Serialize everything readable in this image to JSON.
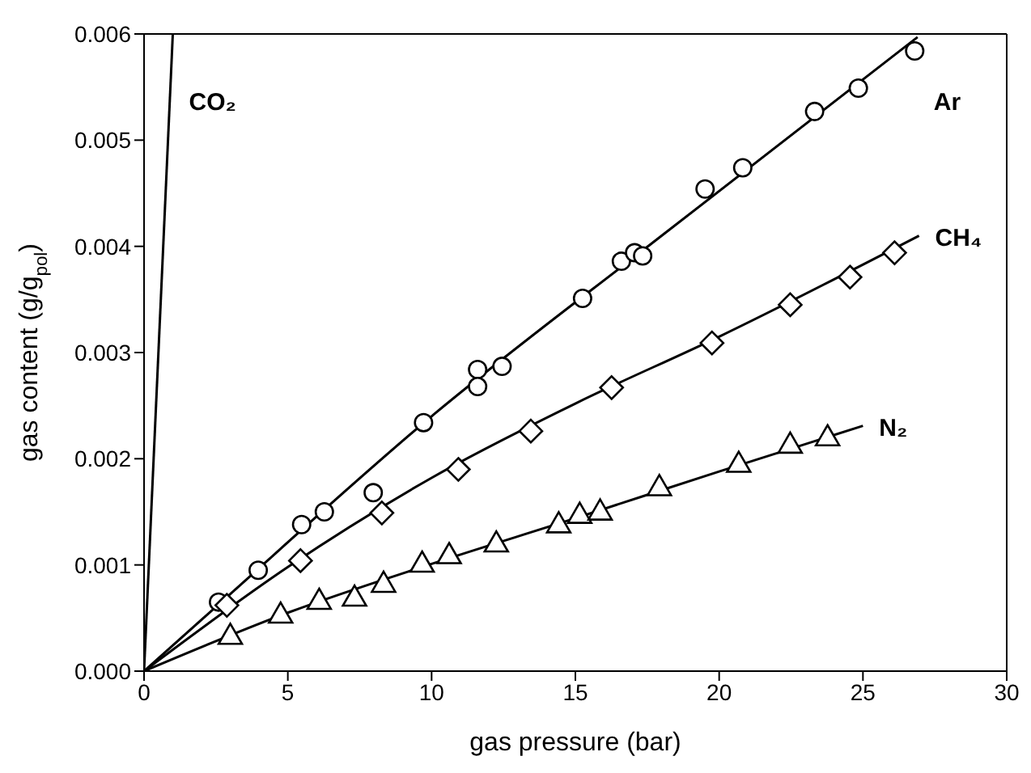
{
  "chart_data": {
    "type": "scatter",
    "xlabel": "gas pressure (bar)",
    "ylabel": "gas content (g/g$_{pol}$)",
    "xlim": [
      0,
      30
    ],
    "xticks": [
      0,
      5,
      10,
      15,
      20,
      25,
      30
    ],
    "ylim": [
      0,
      0.006
    ],
    "yticks": [
      {
        "value": 0,
        "label": "0.000"
      },
      {
        "value": 0.001,
        "label": "0.001"
      },
      {
        "value": 0.002,
        "label": "0.002"
      },
      {
        "value": 0.003,
        "label": "0.003"
      },
      {
        "value": 0.004,
        "label": "0.004"
      },
      {
        "value": 0.005,
        "label": "0.005"
      },
      {
        "value": 0.006,
        "label": "0.006"
      }
    ],
    "series": [
      {
        "marker": "circle",
        "color": "#000000",
        "x": [
          2.59,
          3.97,
          5.48,
          6.27,
          7.97,
          9.72,
          11.6,
          11.6,
          12.45,
          15.25,
          16.6,
          17.06,
          17.34,
          19.51,
          20.82,
          23.32,
          24.84,
          26.8
        ],
        "values": [
          0.00065,
          0.00095,
          0.00138,
          0.0015,
          0.00168,
          0.00234,
          0.00284,
          0.00268,
          0.00287,
          0.00351,
          0.00386,
          0.00394,
          0.00391,
          0.00454,
          0.00474,
          0.00527,
          0.00549,
          0.00584
        ]
      },
      {
        "marker": "diamond",
        "color": "#000000",
        "x": [
          2.88,
          5.44,
          8.27,
          10.93,
          13.45,
          16.26,
          19.75,
          22.47,
          24.55,
          26.1
        ],
        "values": [
          0.00062,
          0.00104,
          0.00149,
          0.0019,
          0.00226,
          0.00267,
          0.00309,
          0.00345,
          0.00371,
          0.00394
        ]
      },
      {
        "marker": "triangle",
        "color": "#000000",
        "x": [
          3.0,
          4.75,
          6.09,
          7.32,
          8.33,
          9.67,
          10.61,
          12.25,
          14.42,
          15.15,
          15.86,
          17.92,
          20.68,
          22.47,
          23.77
        ],
        "values": [
          0.00032,
          0.00052,
          0.00065,
          0.00068,
          0.00081,
          0.001,
          0.00108,
          0.00119,
          0.00137,
          0.00146,
          0.00149,
          0.00172,
          0.00194,
          0.00212,
          0.00219
        ]
      },
      {
        "type": "line",
        "name": "CO₂",
        "color": "#000000",
        "marker": "none",
        "x": [
          0,
          1.0
        ],
        "values": [
          0,
          0.006
        ]
      },
      {
        "type": "line",
        "name": "Ar",
        "color": "#000000",
        "marker": "none",
        "x": [
          0,
          2.6,
          10,
          18,
          26.9
        ],
        "values": [
          0,
          0.00063,
          0.0024,
          0.0041,
          0.00597
        ]
      },
      {
        "type": "line",
        "name": "CH₄",
        "color": "#000000",
        "marker": "none",
        "x": [
          0,
          5,
          10,
          15,
          20,
          26.95
        ],
        "values": [
          0,
          0.00098,
          0.00182,
          0.00252,
          0.00315,
          0.0041
        ]
      },
      {
        "type": "line",
        "name": "N₂",
        "color": "#000000",
        "marker": "none",
        "x": [
          0,
          5,
          10,
          15,
          20,
          25
        ],
        "values": [
          0,
          0.00055,
          0.00101,
          0.00144,
          0.00188,
          0.00231
        ]
      }
    ]
  }
}
